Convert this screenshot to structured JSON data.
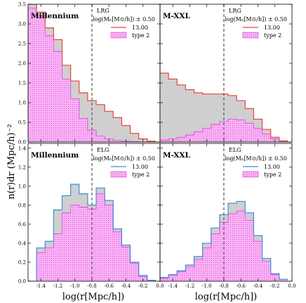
{
  "figure": {
    "ylabel": "n(r)dr (Mpc/h)⁻²",
    "xlabel": "log(r[Mpc/h])",
    "xticks": [
      "-1.4",
      "-1.2",
      "-1.0",
      "-0.8",
      "-0.6",
      "-0.4",
      "-0.2",
      "0.0"
    ],
    "yticks_top": [
      "0.0",
      "0.5",
      "1.0",
      "1.5",
      "2.0",
      "2.5",
      "3.0",
      "3.5"
    ],
    "yticks_bottom": [
      "0.0",
      "0.2",
      "0.4",
      "0.6",
      "0.8",
      "1.0",
      "1.2",
      "1.4"
    ]
  },
  "legend": {
    "mass_label": "log(Mₕ[M⊙/h]) ± 0.50",
    "mass_value": "13.00",
    "type2_label": "type 2"
  },
  "colors": {
    "lrg_line": "#e8443a",
    "elg_line": "#3d8fd6",
    "type2_fill": "#f9b3f5",
    "type2_edge": "#e040e0",
    "gray_fill": "#cfcfcf",
    "vline": "#555555"
  },
  "chart_data": [
    {
      "type": "area",
      "panel": "top-left",
      "title": "Millennium",
      "sample": "LRG",
      "xlim": [
        -1.55,
        0.0
      ],
      "ylim": [
        0,
        3.5
      ],
      "x": [
        -1.5,
        -1.4,
        -1.3,
        -1.2,
        -1.1,
        -1.0,
        -0.9,
        -0.8,
        -0.7,
        -0.6,
        -0.5,
        -0.4,
        -0.3,
        -0.2,
        -0.1
      ],
      "series": [
        {
          "name": "13.00",
          "values": [
            3.5,
            3.3,
            2.9,
            2.6,
            1.95,
            1.55,
            1.25,
            1.05,
            0.95,
            0.78,
            0.62,
            0.42,
            0.22,
            0.08,
            0.02
          ]
        },
        {
          "name": "type 2",
          "values": [
            3.4,
            3.2,
            2.7,
            2.3,
            1.6,
            1.1,
            0.6,
            0.3,
            0.15,
            0.08,
            0.04,
            0.02,
            0.01,
            0.0,
            0.0
          ]
        }
      ],
      "vline": -0.8
    },
    {
      "type": "area",
      "panel": "top-right",
      "title": "M-XXL",
      "sample": "LRG",
      "xlim": [
        -1.55,
        0.0
      ],
      "ylim": [
        0,
        3.5
      ],
      "x": [
        -1.5,
        -1.4,
        -1.3,
        -1.2,
        -1.1,
        -1.0,
        -0.9,
        -0.8,
        -0.7,
        -0.6,
        -0.5,
        -0.4,
        -0.3,
        -0.2,
        -0.1
      ],
      "series": [
        {
          "name": "13.00",
          "values": [
            1.75,
            1.6,
            1.45,
            1.33,
            1.25,
            1.22,
            1.22,
            1.22,
            1.18,
            1.05,
            0.85,
            0.58,
            0.32,
            0.12,
            0.03
          ]
        },
        {
          "name": "type 2",
          "values": [
            0.05,
            0.08,
            0.12,
            0.18,
            0.26,
            0.35,
            0.45,
            0.52,
            0.58,
            0.56,
            0.48,
            0.35,
            0.2,
            0.08,
            0.02
          ]
        }
      ],
      "vline": -0.8
    },
    {
      "type": "area",
      "panel": "bottom-left",
      "title": "Millennium",
      "sample": "ELG",
      "xlim": [
        -1.55,
        0.0
      ],
      "ylim": [
        0,
        1.45
      ],
      "x": [
        -1.5,
        -1.4,
        -1.3,
        -1.2,
        -1.1,
        -1.0,
        -0.9,
        -0.8,
        -0.7,
        -0.6,
        -0.5,
        -0.4,
        -0.3,
        -0.2,
        -0.1
      ],
      "series": [
        {
          "name": "13.00",
          "values": [
            0.0,
            0.35,
            0.42,
            0.75,
            0.9,
            1.02,
            0.92,
            0.8,
            0.98,
            0.85,
            0.55,
            0.38,
            0.2,
            0.06,
            0.01
          ]
        },
        {
          "name": "type 2",
          "values": [
            0.0,
            0.3,
            0.35,
            0.5,
            0.72,
            0.8,
            0.78,
            0.76,
            0.92,
            0.8,
            0.52,
            0.36,
            0.19,
            0.05,
            0.01
          ]
        }
      ],
      "vline": -0.8
    },
    {
      "type": "area",
      "panel": "bottom-right",
      "title": "M-XXL",
      "sample": "ELG",
      "xlim": [
        -1.55,
        0.0
      ],
      "ylim": [
        0,
        1.45
      ],
      "x": [
        -1.5,
        -1.4,
        -1.3,
        -1.2,
        -1.1,
        -1.0,
        -0.9,
        -0.8,
        -0.7,
        -0.6,
        -0.5,
        -0.4,
        -0.3,
        -0.2,
        -0.1
      ],
      "series": [
        {
          "name": "13.00",
          "values": [
            0.04,
            0.07,
            0.11,
            0.17,
            0.26,
            0.4,
            0.56,
            0.7,
            0.82,
            0.84,
            0.72,
            0.48,
            0.24,
            0.08,
            0.02
          ]
        },
        {
          "name": "type 2",
          "values": [
            0.03,
            0.06,
            0.1,
            0.15,
            0.23,
            0.35,
            0.5,
            0.62,
            0.71,
            0.74,
            0.64,
            0.42,
            0.21,
            0.07,
            0.02
          ]
        }
      ],
      "vline": -0.8
    }
  ]
}
